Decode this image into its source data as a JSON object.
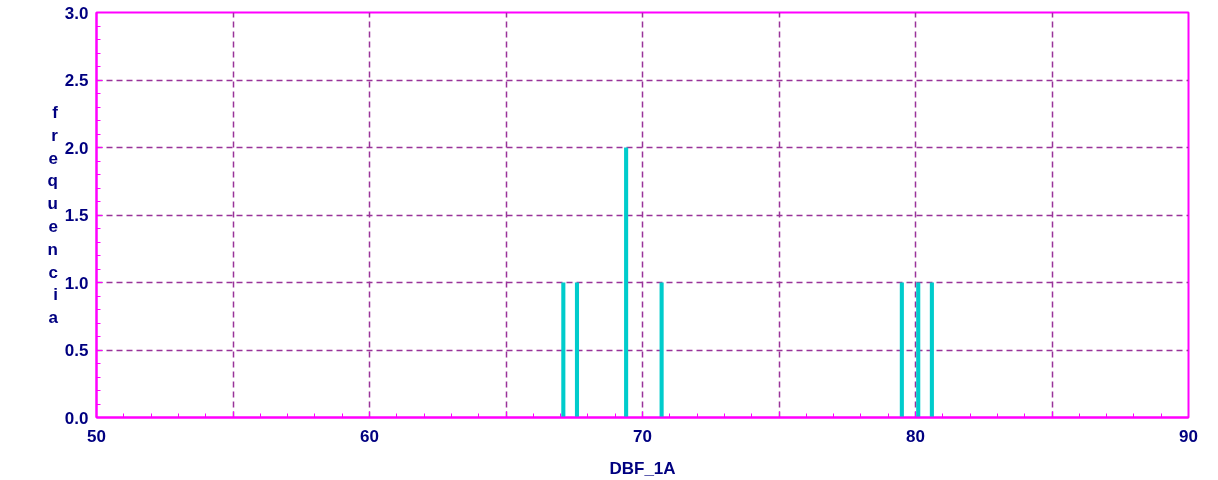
{
  "chart_data": {
    "type": "bar",
    "xlabel": "DBF_1A",
    "ylabel": "frequencia",
    "x": [
      67.1,
      67.6,
      69.4,
      70.7,
      79.5,
      80.1,
      80.6
    ],
    "values": [
      1,
      1,
      2,
      1,
      1,
      1,
      1
    ],
    "color": "#00cccc",
    "xlim": [
      50,
      90
    ],
    "xticks": [
      50,
      {
        "value": 55,
        "label": null
      },
      60,
      {
        "value": 65,
        "label": null
      },
      70,
      {
        "value": 75,
        "label": null
      },
      80,
      {
        "value": 85,
        "label": null
      },
      90
    ],
    "ylim": [
      0,
      3
    ],
    "yticks": [
      {
        "value": 0,
        "label": "0.0"
      },
      0.5,
      {
        "value": 1,
        "label": "1.0"
      },
      1.5,
      {
        "value": 2,
        "label": "2.0"
      },
      2.5,
      {
        "value": 3,
        "label": "3.0"
      }
    ],
    "grid": true
  }
}
